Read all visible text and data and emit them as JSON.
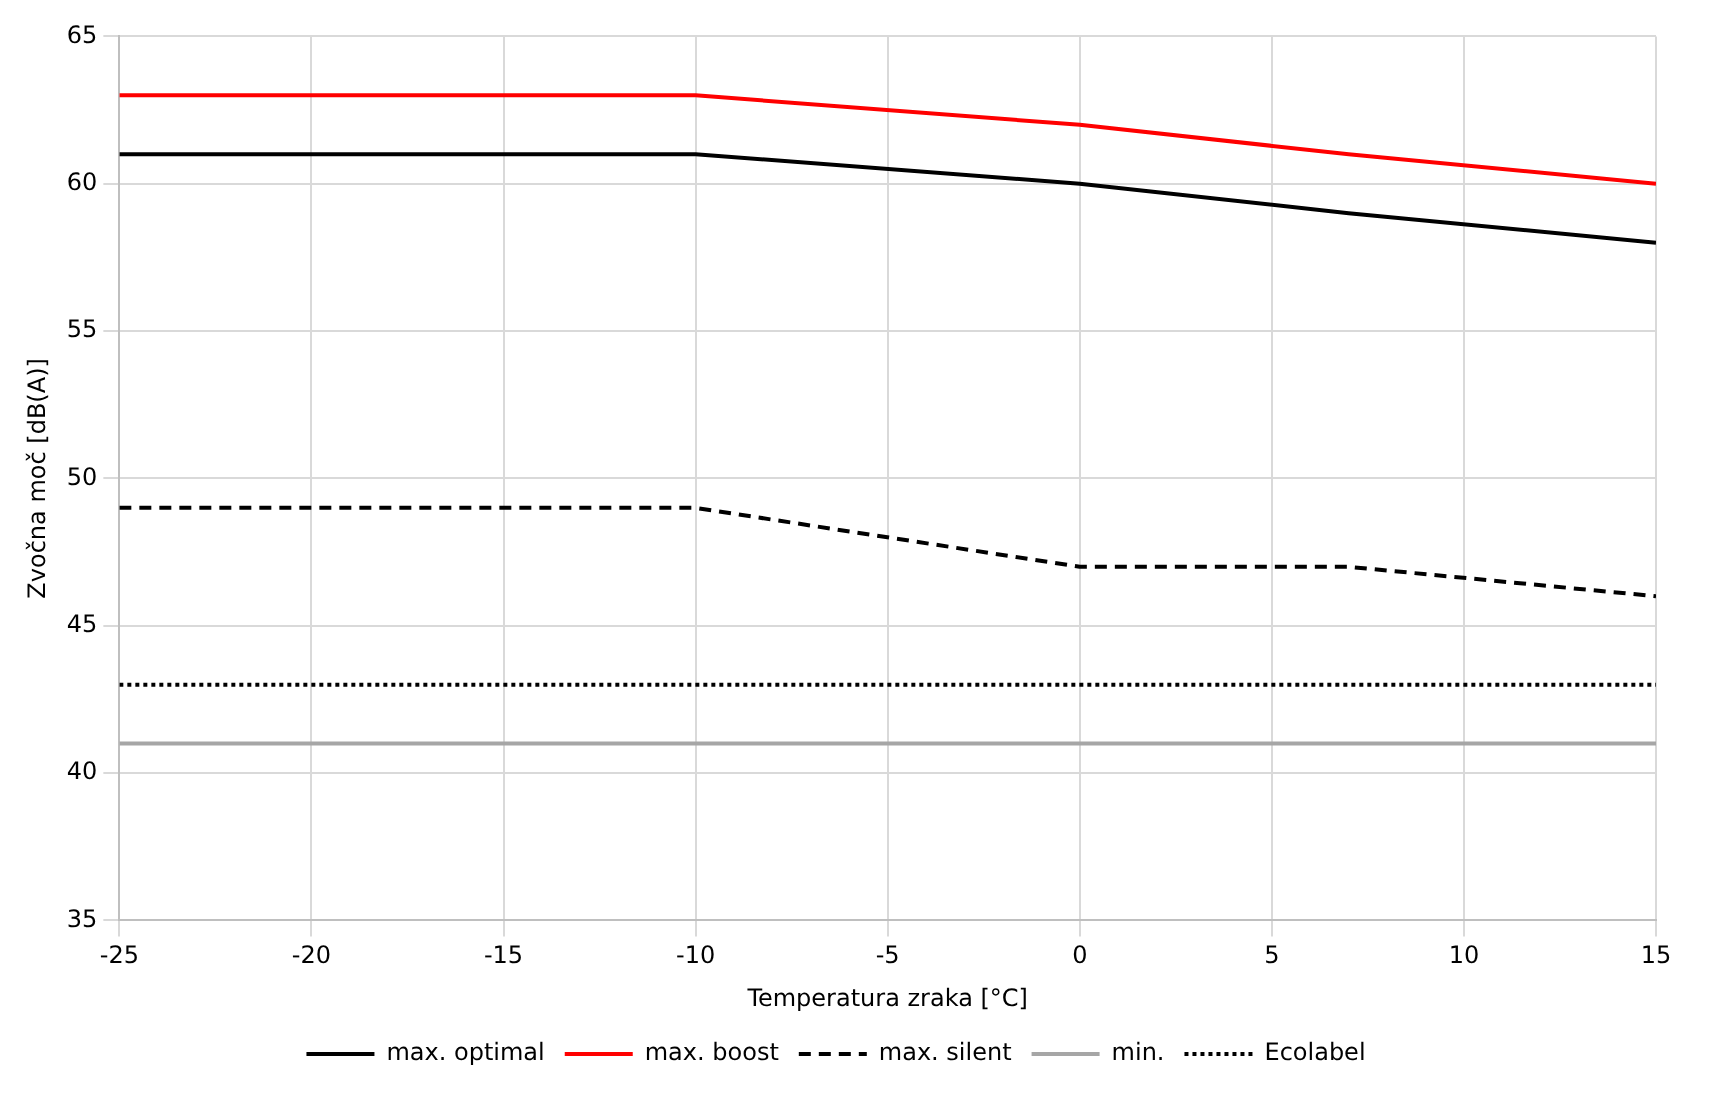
{
  "chart_data": {
    "type": "line",
    "xlabel": "Temperatura zraka [°C]",
    "ylabel": "Zvočna moč [dB(A)]",
    "x": [
      -25,
      -10,
      0,
      7,
      15
    ],
    "xlim": [
      -25,
      15
    ],
    "xticks": [
      -25,
      -20,
      -15,
      -10,
      -5,
      0,
      5,
      10,
      15
    ],
    "ylim": [
      35,
      65
    ],
    "yticks": [
      35,
      40,
      45,
      50,
      55,
      60,
      65
    ],
    "grid": true,
    "legend": "bottom",
    "marker": "none",
    "series": [
      {
        "name": "max. optimal",
        "color": "#000000",
        "values": [
          61,
          61,
          60,
          59,
          58
        ],
        "line_style": "solid"
      },
      {
        "name": "max. boost",
        "color": "#ff0000",
        "values": [
          63,
          63,
          62,
          61,
          60
        ],
        "line_style": "solid"
      },
      {
        "name": "max. silent",
        "color": "#000000",
        "values": [
          49,
          49,
          47,
          47,
          46
        ],
        "line_style": "dashed"
      },
      {
        "name": "min.",
        "color": "#a6a6a6",
        "values": [
          41,
          41,
          41,
          41,
          41
        ],
        "line_style": "solid"
      },
      {
        "name": "Ecolabel",
        "color": "#000000",
        "values": [
          43,
          43,
          43,
          43,
          43
        ],
        "line_style": "dotted"
      }
    ]
  }
}
